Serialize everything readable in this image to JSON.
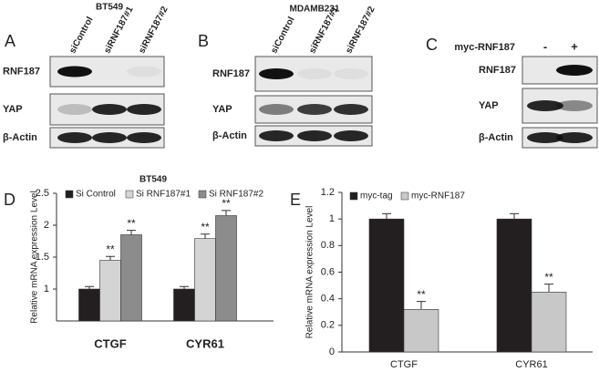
{
  "blots": [
    {
      "letter": "A",
      "cell_line": "BT549",
      "lanes": [
        "siControl",
        "siRNF187#1",
        "siRNF187#2"
      ],
      "rows": [
        "RNF187",
        "YAP",
        "β-Actin"
      ]
    },
    {
      "letter": "B",
      "cell_line": "MDAMB231",
      "lanes": [
        "siControl",
        "siRNF187#1",
        "siRNF187#2"
      ],
      "rows": [
        "RNF187",
        "YAP",
        "β-Actin"
      ]
    },
    {
      "letter": "C",
      "lanes_title": "myc-RNF187",
      "lanes": [
        "-",
        "+"
      ],
      "rows": [
        "RNF187",
        "YAP",
        "β-Actin"
      ]
    }
  ],
  "chart_data": [
    {
      "type": "bar",
      "letter": "D",
      "title": "BT549",
      "ylabel": "Relative mRNA expression Level",
      "categories": [
        "CTGF",
        "CYR61"
      ],
      "ylim": [
        0.5,
        2.5
      ],
      "yticks": [
        1,
        1.5,
        2,
        2.5
      ],
      "legend": "top",
      "series": [
        {
          "name": "Si Control",
          "color": "#231f20",
          "values": [
            1,
            1
          ],
          "errors": [
            0.04,
            0.04
          ]
        },
        {
          "name": "Si RNF187#1",
          "color": "#d4d4d4",
          "values": [
            1.45,
            1.79
          ],
          "errors": [
            0.06,
            0.07
          ],
          "significance": "**"
        },
        {
          "name": "Si RNF187#2",
          "color": "#8c8c8c",
          "values": [
            1.85,
            2.15
          ],
          "errors": [
            0.07,
            0.08
          ],
          "significance": "**"
        }
      ]
    },
    {
      "type": "bar",
      "letter": "E",
      "ylabel": "Relative mRNA expression Level",
      "categories": [
        "CTGF",
        "CYR61"
      ],
      "ylim": [
        0,
        1.2
      ],
      "yticks": [
        0,
        0.2,
        0.4,
        0.6,
        0.8,
        1,
        1.2
      ],
      "legend": "top",
      "series": [
        {
          "name": "myc-tag",
          "color": "#231f20",
          "values": [
            1,
            1
          ],
          "errors": [
            0.04,
            0.04
          ]
        },
        {
          "name": "myc-RNF187",
          "color": "#c8c8c8",
          "values": [
            0.32,
            0.45
          ],
          "errors": [
            0.06,
            0.06
          ],
          "significance": "**"
        }
      ]
    }
  ]
}
